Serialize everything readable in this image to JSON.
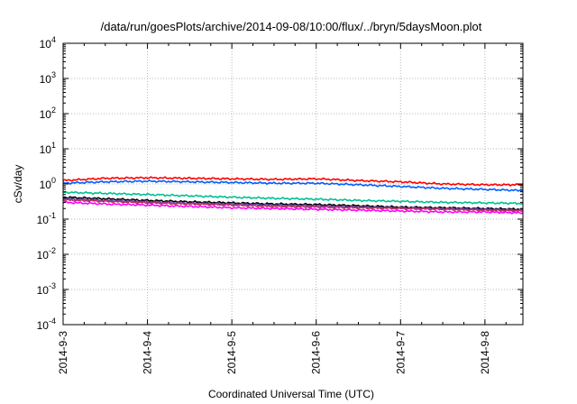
{
  "chart_data": {
    "type": "line",
    "title": "/data/run/goesPlots/archive/2014-09-08/10:00/flux/../bryn/5daysMoon.plot",
    "xlabel": "Coordinated Universal Time (UTC)",
    "ylabel": "cSv/day",
    "yscale": "log",
    "ylim": [
      0.0001,
      10000
    ],
    "xlim": [
      0,
      5.45
    ],
    "x_ticks": [
      {
        "pos": 0,
        "label": "2014-9-3"
      },
      {
        "pos": 1,
        "label": "2014-9-4"
      },
      {
        "pos": 2,
        "label": "2014-9-5"
      },
      {
        "pos": 3,
        "label": "2014-9-6"
      },
      {
        "pos": 4,
        "label": "2014-9-7"
      },
      {
        "pos": 5,
        "label": "2014-9-8"
      }
    ],
    "y_ticks": [
      {
        "base": "10",
        "exp": "-4",
        "value": 0.0001
      },
      {
        "base": "10",
        "exp": "-3",
        "value": 0.001
      },
      {
        "base": "10",
        "exp": "-2",
        "value": 0.01
      },
      {
        "base": "10",
        "exp": "-1",
        "value": 0.1
      },
      {
        "base": "10",
        "exp": "0",
        "value": 1
      },
      {
        "base": "10",
        "exp": "1",
        "value": 10
      },
      {
        "base": "10",
        "exp": "2",
        "value": 100
      },
      {
        "base": "10",
        "exp": "3",
        "value": 1000
      },
      {
        "base": "10",
        "exp": "4",
        "value": 10000
      }
    ],
    "grid": true,
    "x": [
      0,
      0.5,
      1,
      1.5,
      2,
      2.5,
      3,
      3.5,
      4,
      4.5,
      5,
      5.45
    ],
    "series": [
      {
        "color": "#ff0000",
        "values": [
          1.25,
          1.45,
          1.5,
          1.45,
          1.4,
          1.35,
          1.4,
          1.25,
          1.15,
          1.0,
          0.95,
          0.95
        ]
      },
      {
        "color": "#0060ff",
        "values": [
          1.05,
          1.15,
          1.2,
          1.15,
          1.1,
          1.05,
          1.05,
          0.95,
          0.85,
          0.75,
          0.7,
          0.65
        ]
      },
      {
        "color": "#00c090",
        "values": [
          0.58,
          0.54,
          0.5,
          0.46,
          0.42,
          0.39,
          0.37,
          0.34,
          0.32,
          0.3,
          0.29,
          0.28
        ]
      },
      {
        "color": "#000000",
        "values": [
          0.42,
          0.38,
          0.34,
          0.31,
          0.29,
          0.27,
          0.26,
          0.24,
          0.22,
          0.21,
          0.2,
          0.19
        ]
      },
      {
        "color": "#5a3ca8",
        "values": [
          0.38,
          0.34,
          0.31,
          0.28,
          0.27,
          0.25,
          0.24,
          0.22,
          0.21,
          0.2,
          0.19,
          0.18
        ]
      },
      {
        "color": "#c03060",
        "values": [
          0.35,
          0.32,
          0.29,
          0.27,
          0.25,
          0.23,
          0.22,
          0.21,
          0.2,
          0.19,
          0.18,
          0.17
        ]
      },
      {
        "color": "#ff00ff",
        "values": [
          0.3,
          0.27,
          0.25,
          0.23,
          0.21,
          0.2,
          0.19,
          0.18,
          0.17,
          0.16,
          0.16,
          0.15
        ]
      }
    ]
  }
}
